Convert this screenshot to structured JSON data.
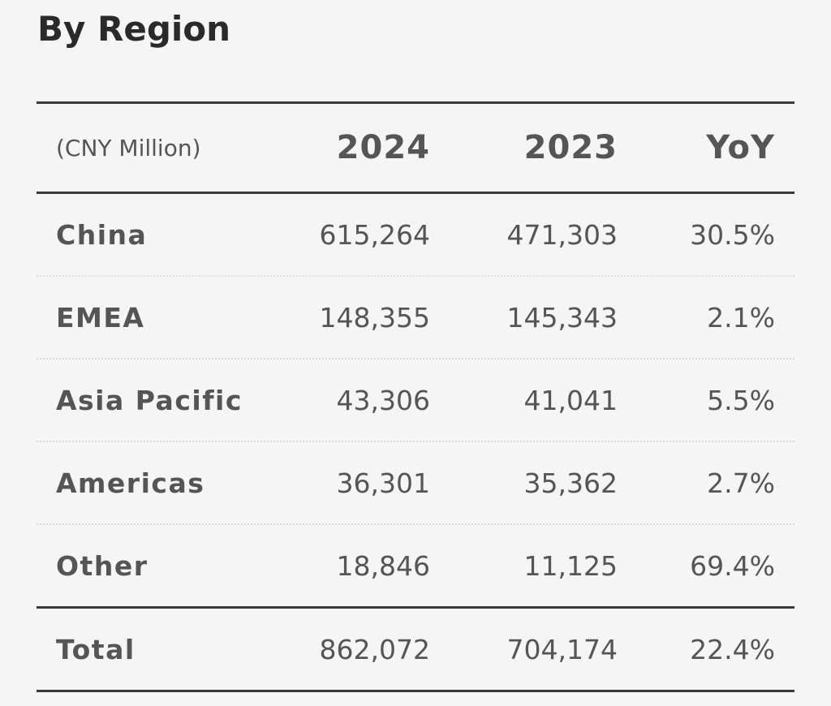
{
  "title": "By Region",
  "table": {
    "unit_label": "(CNY Million)",
    "columns": [
      "2024",
      "2023",
      "YoY"
    ],
    "rows": [
      {
        "region": "China",
        "v2024": "615,264",
        "v2023": "471,303",
        "yoy": "30.5%"
      },
      {
        "region": "EMEA",
        "v2024": "148,355",
        "v2023": "145,343",
        "yoy": "2.1%"
      },
      {
        "region": "Asia Pacific",
        "v2024": "43,306",
        "v2023": "41,041",
        "yoy": "5.5%"
      },
      {
        "region": "Americas",
        "v2024": "36,301",
        "v2023": "35,362",
        "yoy": "2.7%"
      },
      {
        "region": "Other",
        "v2024": "18,846",
        "v2023": "11,125",
        "yoy": "69.4%"
      }
    ],
    "total": {
      "label": "Total",
      "v2024": "862,072",
      "v2023": "704,174",
      "yoy": "22.4%"
    }
  }
}
